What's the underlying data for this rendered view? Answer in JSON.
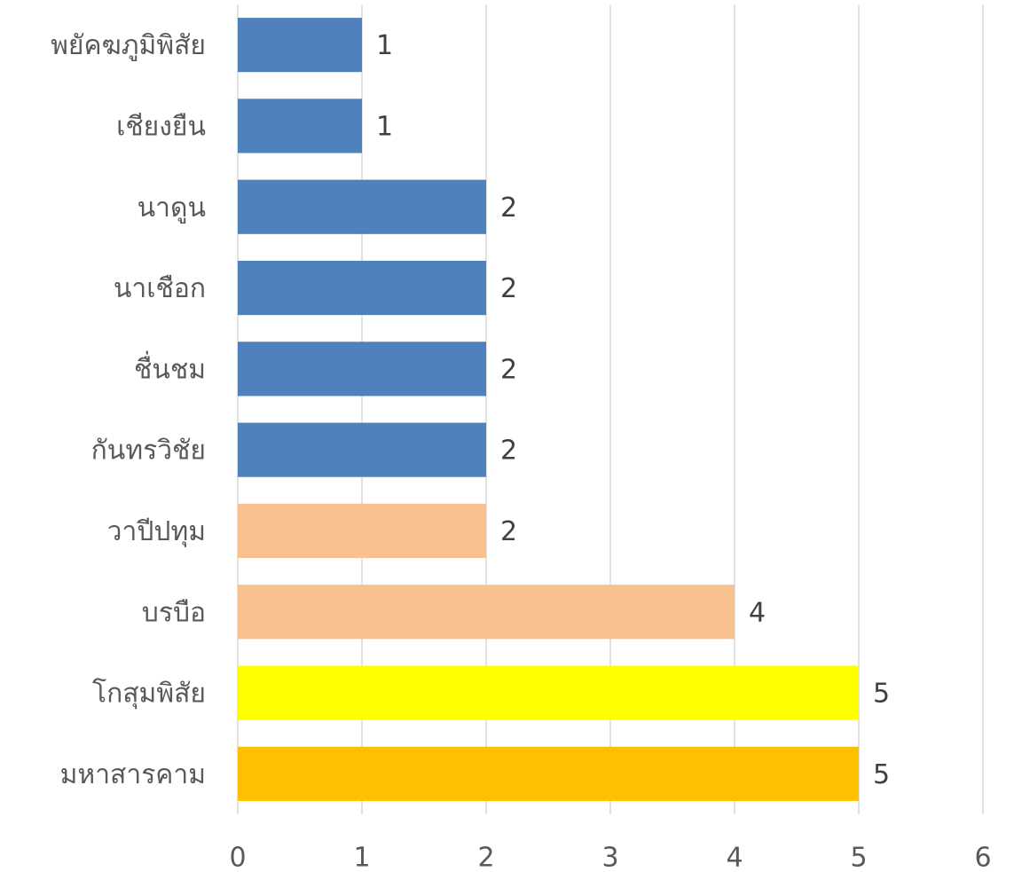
{
  "chart_data": {
    "type": "bar",
    "orientation": "horizontal",
    "categories": [
      "พยัคฆภูมิพิสัย",
      "เชียงยืน",
      "นาดูน",
      "นาเชือก",
      "ชื่นชม",
      "กันทรวิชัย",
      "วาปีปทุม",
      "บรบือ",
      "โกสุมพิสัย",
      "มหาสารคาม"
    ],
    "values": [
      1,
      1,
      2,
      2,
      2,
      2,
      2,
      4,
      5,
      5
    ],
    "colors": [
      "#4f81bd",
      "#4f81bd",
      "#4f81bd",
      "#4f81bd",
      "#4f81bd",
      "#4f81bd",
      "#f9c090",
      "#f9c090",
      "#ffff00",
      "#ffc000"
    ],
    "xlim": [
      0,
      6
    ],
    "xticks": [
      0,
      1,
      2,
      3,
      4,
      5,
      6
    ],
    "grid": true
  }
}
